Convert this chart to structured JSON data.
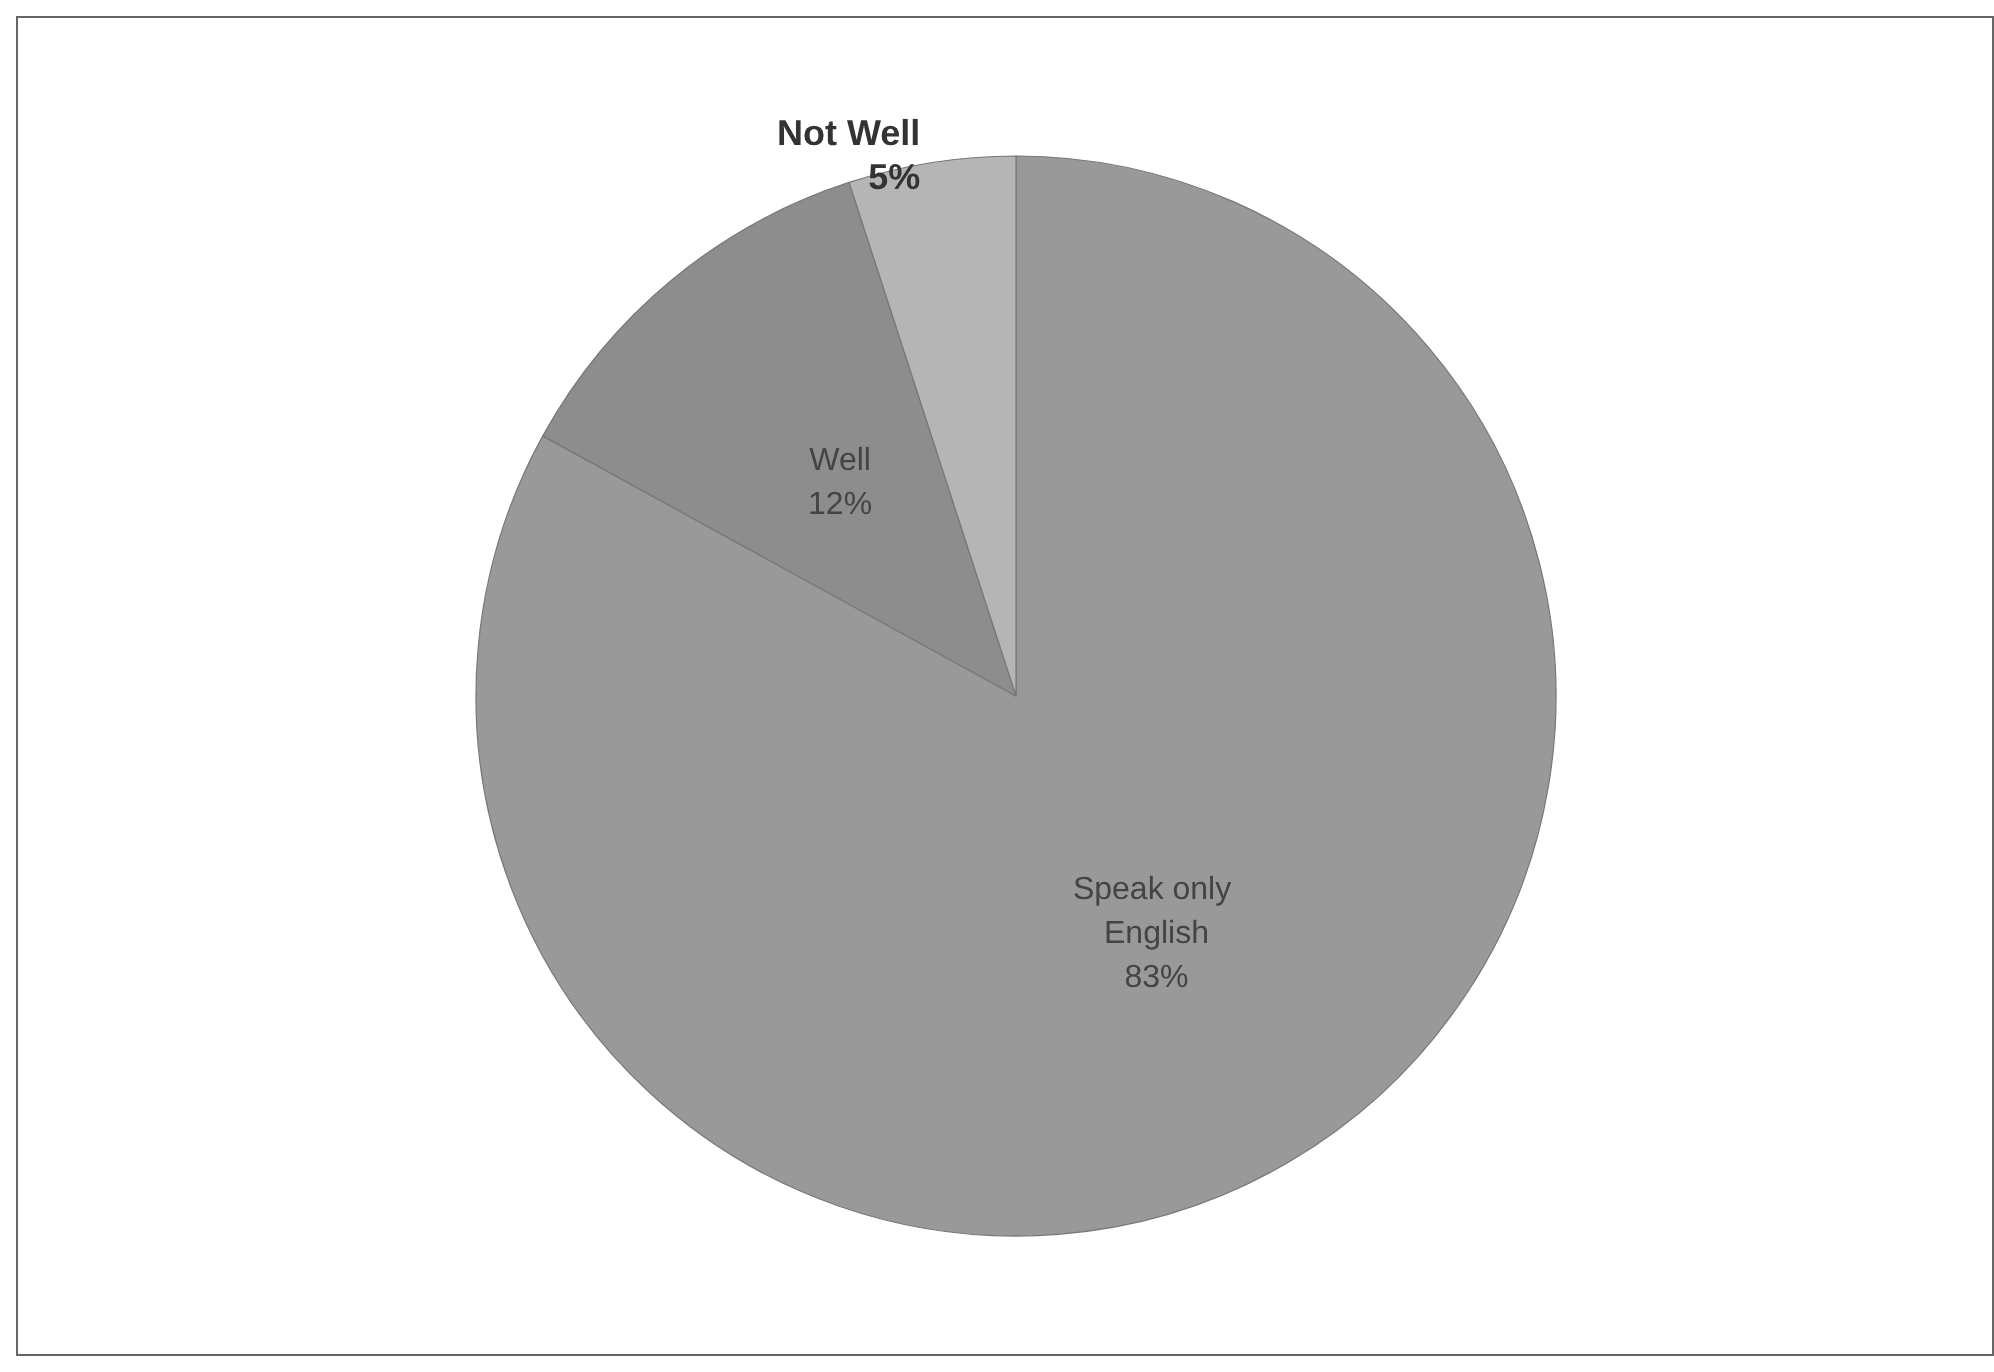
{
  "chart_data": {
    "type": "pie",
    "categories": [
      "Speak only English",
      "Well",
      "Not Well"
    ],
    "values": [
      83,
      12,
      5
    ],
    "value_labels": [
      "83%",
      "12%",
      "5%"
    ],
    "colors": [
      "#999999",
      "#8d8d8d",
      "#b5b5b5"
    ],
    "legend": false
  }
}
